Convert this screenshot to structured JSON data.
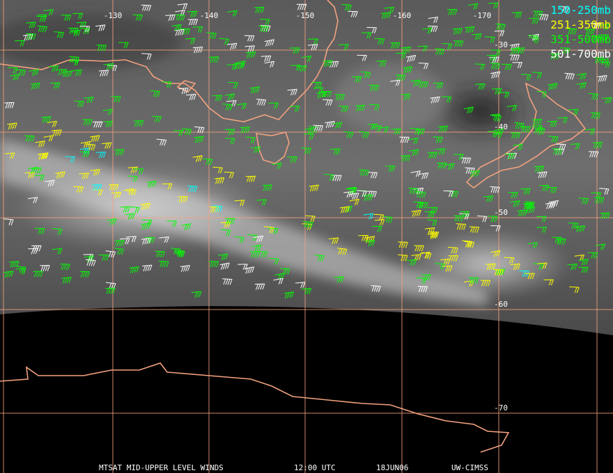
{
  "map": {
    "longitude_labels": [
      "-130",
      "-140",
      "-150",
      "-160",
      "-170"
    ],
    "latitude_labels": [
      "-30",
      "-40",
      "-50",
      "-60",
      "-70"
    ],
    "legend": [
      {
        "label": "150-250mb",
        "color": "#00ffff"
      },
      {
        "label": "251-350mb",
        "color": "#ffff00"
      },
      {
        "label": "351-500mb",
        "color": "#00ff00"
      },
      {
        "label": "501-700mb",
        "color": "#ffffff"
      }
    ],
    "footer": [
      "MTSAT MID-UPPER LEVEL WINDS",
      "12:00 UTC",
      "18JUN06",
      "UW-CIMSS"
    ]
  }
}
